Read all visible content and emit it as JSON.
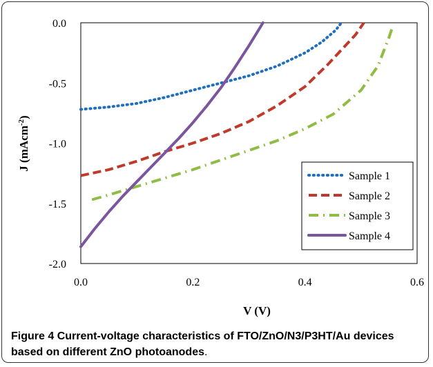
{
  "caption": {
    "label": "Figure 4",
    "text": "Current-voltage characteristics of FTO/ZnO/N3/P3HT/Au devices based on different ZnO photoanodes",
    "end": "."
  },
  "chart_data": {
    "type": "line",
    "xlabel": "V (V)",
    "ylabel": "J (mAcm",
    "ylabel_sup": "-2",
    "ylabel_end": ")",
    "xlim": [
      0,
      0.6
    ],
    "ylim": [
      -2.0,
      0.0
    ],
    "x_ticks": [
      "0.0",
      "0.2",
      "0.4",
      "0.6"
    ],
    "y_ticks": [
      "0.0",
      "-0.5",
      "-1.0",
      "-1.5",
      "-2.0"
    ],
    "grid": false,
    "legend_position": "bottom-right",
    "series": [
      {
        "name": "Sample 1",
        "color": "#1f6fbf",
        "dash": "dotted",
        "x": [
          0.0,
          0.05,
          0.1,
          0.15,
          0.2,
          0.25,
          0.3,
          0.35,
          0.4,
          0.43,
          0.455,
          0.465
        ],
        "y": [
          -0.72,
          -0.7,
          -0.67,
          -0.62,
          -0.56,
          -0.5,
          -0.44,
          -0.36,
          -0.25,
          -0.16,
          -0.06,
          0.0
        ]
      },
      {
        "name": "Sample 2",
        "color": "#c0392b",
        "dash": "dashed",
        "x": [
          0.0,
          0.05,
          0.1,
          0.15,
          0.2,
          0.25,
          0.3,
          0.35,
          0.4,
          0.44,
          0.47,
          0.49,
          0.505
        ],
        "y": [
          -1.27,
          -1.22,
          -1.15,
          -1.07,
          -1.0,
          -0.92,
          -0.82,
          -0.69,
          -0.53,
          -0.35,
          -0.2,
          -0.1,
          0.0
        ]
      },
      {
        "name": "Sample 3",
        "color": "#8fbc45",
        "dash": "dashdot",
        "x": [
          0.02,
          0.05,
          0.1,
          0.15,
          0.2,
          0.25,
          0.3,
          0.35,
          0.4,
          0.45,
          0.5,
          0.53,
          0.55,
          0.555
        ],
        "y": [
          -1.47,
          -1.43,
          -1.36,
          -1.29,
          -1.22,
          -1.14,
          -1.06,
          -0.98,
          -0.88,
          -0.76,
          -0.56,
          -0.36,
          -0.12,
          -0.05
        ]
      },
      {
        "name": "Sample 4",
        "color": "#7b559e",
        "dash": "solid",
        "x": [
          0.0,
          0.025,
          0.05,
          0.075,
          0.1,
          0.125,
          0.15,
          0.175,
          0.2,
          0.225,
          0.25,
          0.275,
          0.3,
          0.325
        ],
        "y": [
          -1.86,
          -1.71,
          -1.57,
          -1.44,
          -1.32,
          -1.2,
          -1.08,
          -0.96,
          -0.83,
          -0.69,
          -0.54,
          -0.37,
          -0.19,
          0.0
        ]
      }
    ]
  }
}
